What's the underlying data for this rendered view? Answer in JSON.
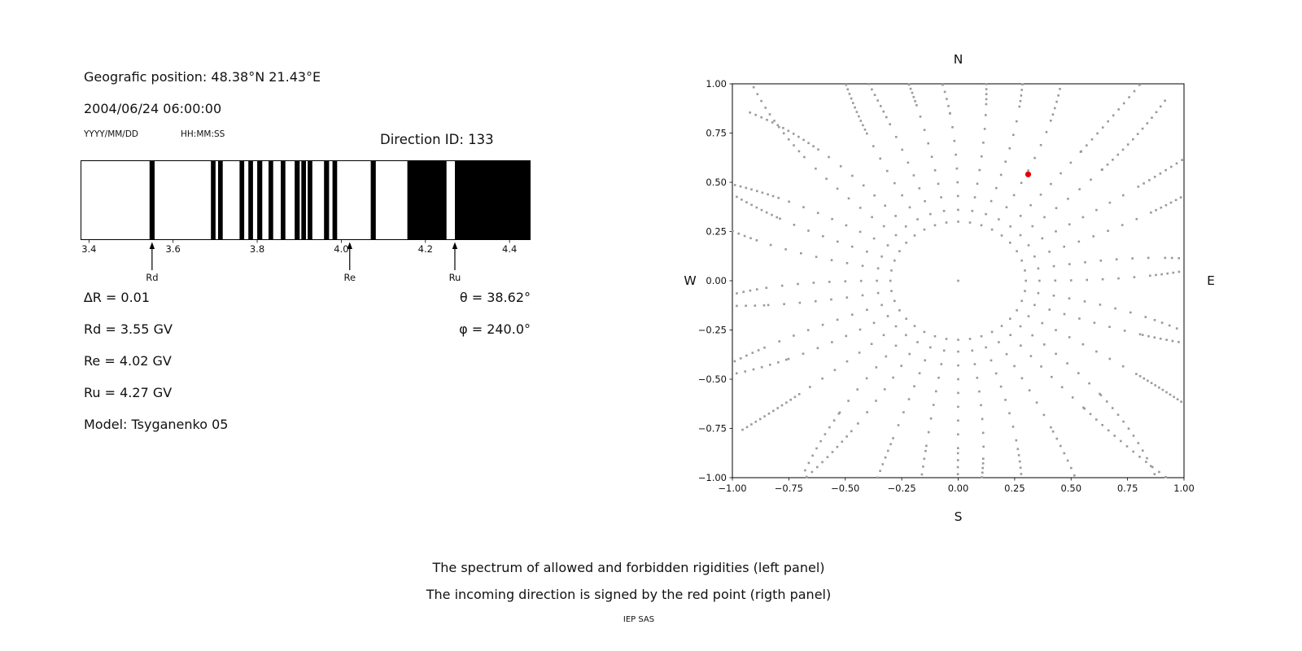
{
  "colors": {
    "band": "#000000",
    "dot": "#9a9a9a",
    "red_point": "#e50000",
    "text": "#111111"
  },
  "header": {
    "position": "Geografic position: 48.38°N 21.43°E",
    "datetime": "2004/06/24 06:00:00",
    "date_format_label": "YYYY/MM/DD",
    "time_format_label": "HH:MM:SS",
    "direction_id": "Direction ID: 133"
  },
  "left_info": {
    "delta_r": "∆R = 0.01",
    "rd": "Rd = 3.55 GV",
    "re": "Re = 4.02 GV",
    "ru": "Ru = 4.27 GV",
    "model": "Model: Tsyganenko 05",
    "theta": "θ = 38.62°",
    "phi": "φ = 240.0°"
  },
  "captions": {
    "line1": "The spectrum of allowed and forbidden rigidities (left panel)",
    "line2": "The incoming direction is signed by the red point (rigth panel)",
    "credit": "IEP SAS"
  },
  "chart_data": [
    {
      "type": "bar",
      "title": "",
      "xlabel": "",
      "ylabel": "",
      "xlim": [
        3.38,
        4.45
      ],
      "xticks": [
        3.4,
        3.6,
        3.8,
        4.0,
        4.2,
        4.4
      ],
      "allowed_bands_gv": [
        [
          3.544,
          3.556
        ],
        [
          3.69,
          3.701
        ],
        [
          3.707,
          3.718
        ],
        [
          3.758,
          3.769
        ],
        [
          3.779,
          3.79
        ],
        [
          3.8,
          3.812
        ],
        [
          3.827,
          3.838
        ],
        [
          3.856,
          3.867
        ],
        [
          3.889,
          3.901
        ],
        [
          3.905,
          3.916
        ],
        [
          3.92,
          3.931
        ],
        [
          3.959,
          3.971
        ],
        [
          3.979,
          3.99
        ],
        [
          4.07,
          4.082
        ],
        [
          4.157,
          4.25
        ],
        [
          4.27,
          4.452
        ]
      ],
      "cutoffs": [
        {
          "label": "Rd",
          "value_gv": 3.55
        },
        {
          "label": "Re",
          "value_gv": 4.02
        },
        {
          "label": "Ru",
          "value_gv": 4.27
        }
      ]
    },
    {
      "type": "scatter",
      "title": "",
      "xlim": [
        -1,
        1
      ],
      "ylim": [
        -1,
        1
      ],
      "xticks": [
        -1.0,
        -0.75,
        -0.5,
        -0.25,
        0.0,
        0.25,
        0.5,
        0.75,
        1.0
      ],
      "yticks": [
        -1.0,
        -0.75,
        -0.5,
        -0.25,
        0.0,
        0.25,
        0.5,
        0.75,
        1.0
      ],
      "compass_labels": {
        "top": "N",
        "bottom": "S",
        "left": "W",
        "right": "E"
      },
      "red_point": {
        "x": 0.31,
        "y": 0.54
      },
      "dots": {
        "spoke_count": 36,
        "spoke_step_deg": 10,
        "inner_ring_radius": 0.3,
        "inner_segment": {
          "count": 8,
          "r0": 0.36,
          "r1": 0.85
        },
        "outer_segment": {
          "count": 14,
          "r0": 0.89,
          "r1": 1.3
        },
        "max_curve_deg": 9,
        "center_dot": true
      }
    }
  ]
}
